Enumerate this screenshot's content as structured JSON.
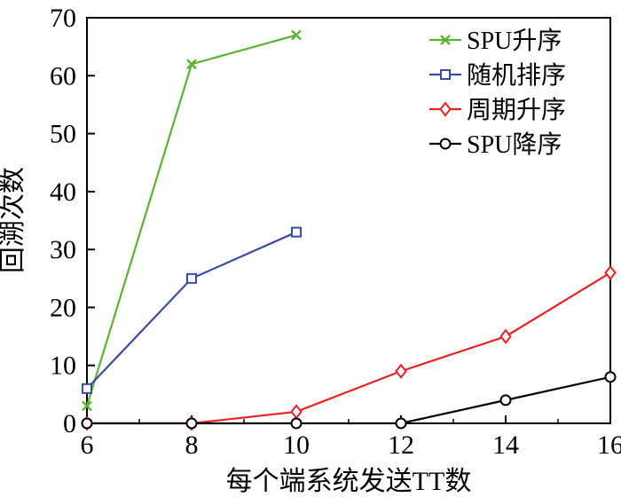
{
  "chart_data": {
    "type": "line",
    "title": "",
    "xlabel": "每个端系统发送TT数",
    "ylabel": "回溯次数",
    "xlim": [
      6,
      16
    ],
    "ylim": [
      0,
      70
    ],
    "x_major_ticks": [
      6,
      8,
      10,
      12,
      14,
      16
    ],
    "x_minor_ticks": [
      7,
      9,
      11,
      13,
      15
    ],
    "y_major_ticks": [
      0,
      10,
      20,
      30,
      40,
      50,
      60,
      70
    ],
    "grid": false,
    "legend_position": "top-right-inside",
    "frame_color": "#000000",
    "series": [
      {
        "key": "spu-ascending",
        "name": "SPU升序",
        "color": "#5BB331",
        "marker": "x",
        "x": [
          6,
          8,
          10
        ],
        "y": [
          3,
          62,
          67
        ]
      },
      {
        "key": "random-order",
        "name": "随机排序",
        "color": "#3B4BA3",
        "marker": "square",
        "x": [
          6,
          8,
          10
        ],
        "y": [
          6,
          25,
          33
        ]
      },
      {
        "key": "period-ascending",
        "name": "周期升序",
        "color": "#EC2024",
        "marker": "diamond",
        "x": [
          6,
          8,
          10,
          12,
          14,
          16
        ],
        "y": [
          0,
          0,
          2,
          9,
          15,
          26
        ]
      },
      {
        "key": "spu-descending",
        "name": "SPU降序",
        "color": "#000000",
        "marker": "circle",
        "x": [
          6,
          8,
          10,
          12,
          14,
          16
        ],
        "y": [
          0,
          0,
          0,
          0,
          4,
          8
        ]
      }
    ]
  }
}
